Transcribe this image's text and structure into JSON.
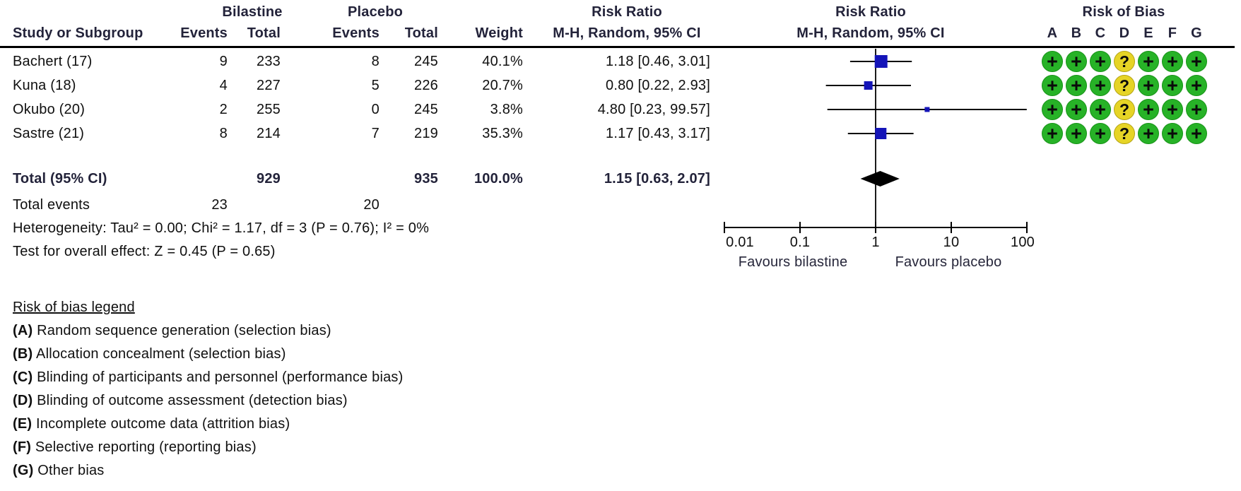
{
  "header": {
    "group1": "Bilastine",
    "group2": "Placebo",
    "risk_ratio": "Risk Ratio",
    "method": "M-H, Random, 95% CI",
    "risk_of_bias": "Risk of Bias",
    "study_col": "Study or Subgroup",
    "events_col": "Events",
    "total_col": "Total",
    "weight_col": "Weight",
    "rob_letters": [
      "A",
      "B",
      "C",
      "D",
      "E",
      "F",
      "G"
    ]
  },
  "studies": [
    {
      "name": "Bachert (17)",
      "events1": "9",
      "total1": "233",
      "events2": "8",
      "total2": "245",
      "weight": "40.1%",
      "rr_text": "1.18 [0.46, 3.01]",
      "rob": [
        "+",
        "+",
        "+",
        "?",
        "+",
        "+",
        "+"
      ]
    },
    {
      "name": "Kuna (18)",
      "events1": "4",
      "total1": "227",
      "events2": "5",
      "total2": "226",
      "weight": "20.7%",
      "rr_text": "0.80 [0.22, 2.93]",
      "rob": [
        "+",
        "+",
        "+",
        "?",
        "+",
        "+",
        "+"
      ]
    },
    {
      "name": "Okubo (20)",
      "events1": "2",
      "total1": "255",
      "events2": "0",
      "total2": "245",
      "weight": "3.8%",
      "rr_text": "4.80 [0.23, 99.57]",
      "rob": [
        "+",
        "+",
        "+",
        "?",
        "+",
        "+",
        "+"
      ]
    },
    {
      "name": "Sastre (21)",
      "events1": "8",
      "total1": "214",
      "events2": "7",
      "total2": "219",
      "weight": "35.3%",
      "rr_text": "1.17 [0.43, 3.17]",
      "rob": [
        "+",
        "+",
        "+",
        "?",
        "+",
        "+",
        "+"
      ]
    }
  ],
  "totals": {
    "label": "Total (95% CI)",
    "total1": "929",
    "total2": "935",
    "weight": "100.0%",
    "rr_text": "1.15 [0.63, 2.07]",
    "events_label": "Total events",
    "events1": "23",
    "events2": "20"
  },
  "stats": {
    "heterogeneity": "Heterogeneity: Tau² = 0.00; Chi² = 1.17, df = 3 (P = 0.76); I² = 0%",
    "overall_effect": "Test for overall effect: Z = 0.45 (P = 0.65)"
  },
  "axis": {
    "ticks": [
      "0.01",
      "0.1",
      "1",
      "10",
      "100"
    ],
    "favours_left": "Favours bilastine",
    "favours_right": "Favours placebo"
  },
  "legend": {
    "title": "Risk of bias legend",
    "items": [
      {
        "key": "(A)",
        "text": "Random sequence generation (selection bias)"
      },
      {
        "key": "(B)",
        "text": "Allocation concealment (selection bias)"
      },
      {
        "key": "(C)",
        "text": "Blinding of participants and personnel (performance bias)"
      },
      {
        "key": "(D)",
        "text": "Blinding of outcome assessment (detection bias)"
      },
      {
        "key": "(E)",
        "text": "Incomplete outcome data (attrition bias)"
      },
      {
        "key": "(F)",
        "text": "Selective reporting (reporting bias)"
      },
      {
        "key": "(G)",
        "text": "Other bias"
      }
    ]
  },
  "colors": {
    "square_blue": "#1414b8",
    "diamond_black": "#000000",
    "rob_green": "#27b227",
    "rob_yellow": "#e6d426",
    "line_black": "#1a1a1a",
    "header_text": "#23233a"
  },
  "chart_data": {
    "type": "scatter",
    "subtype": "forest_plot",
    "title": "Risk Ratio, M-H, Random, 95% CI",
    "x_scale": "log10",
    "x_range": [
      0.01,
      100
    ],
    "x_ticks": [
      0.01,
      0.1,
      1,
      10,
      100
    ],
    "no_effect_x": 1,
    "points": [
      {
        "study": "Bachert (17)",
        "rr": 1.18,
        "ci": [
          0.46,
          3.01
        ],
        "weight_pct": 40.1
      },
      {
        "study": "Kuna (18)",
        "rr": 0.8,
        "ci": [
          0.22,
          2.93
        ],
        "weight_pct": 20.7
      },
      {
        "study": "Okubo (20)",
        "rr": 4.8,
        "ci": [
          0.23,
          99.57
        ],
        "weight_pct": 3.8
      },
      {
        "study": "Sastre (21)",
        "rr": 1.17,
        "ci": [
          0.43,
          3.17
        ],
        "weight_pct": 35.3
      }
    ],
    "total_diamond": {
      "label": "Total (95% CI)",
      "rr": 1.15,
      "ci": [
        0.63,
        2.07
      ],
      "weight_pct": 100.0
    },
    "x_axis_annotations": [
      "Favours bilastine",
      "Favours placebo"
    ],
    "legend_position": "none",
    "grid": false
  }
}
